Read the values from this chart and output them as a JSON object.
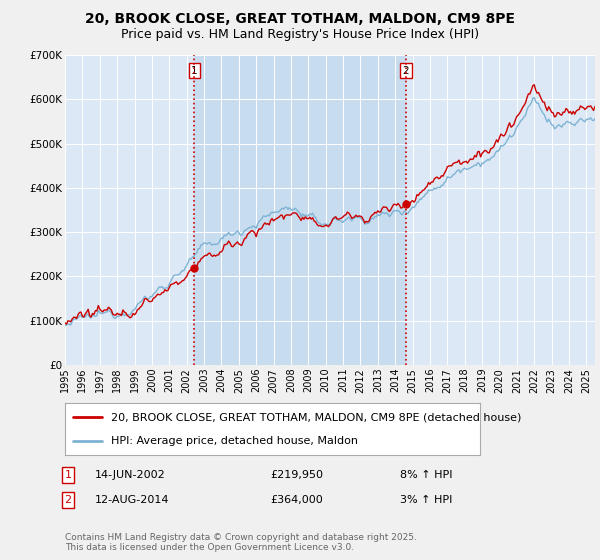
{
  "title": "20, BROOK CLOSE, GREAT TOTHAM, MALDON, CM9 8PE",
  "subtitle": "Price paid vs. HM Land Registry's House Price Index (HPI)",
  "legend_line1": "20, BROOK CLOSE, GREAT TOTHAM, MALDON, CM9 8PE (detached house)",
  "legend_line2": "HPI: Average price, detached house, Maldon",
  "annotation1_label": "1",
  "annotation1_date": "14-JUN-2002",
  "annotation1_price": "£219,950",
  "annotation1_hpi": "8% ↑ HPI",
  "annotation2_label": "2",
  "annotation2_date": "12-AUG-2014",
  "annotation2_price": "£364,000",
  "annotation2_hpi": "3% ↑ HPI",
  "footer": "Contains HM Land Registry data © Crown copyright and database right 2025.\nThis data is licensed under the Open Government Licence v3.0.",
  "line_color_red": "#cc0000",
  "line_color_blue": "#7fb3d3",
  "background_color": "#f0f0f0",
  "plot_bg_color": "#dce8f5",
  "highlight_bg_color": "#c8dcf0",
  "vline_color": "#cc0000",
  "ylim": [
    0,
    700000
  ],
  "yticks": [
    0,
    100000,
    200000,
    300000,
    400000,
    500000,
    600000,
    700000
  ],
  "ytick_labels": [
    "£0",
    "£100K",
    "£200K",
    "£300K",
    "£400K",
    "£500K",
    "£600K",
    "£700K"
  ],
  "xstart_year": 1995,
  "xend_year": 2025,
  "sale1_year": 2002.45,
  "sale2_year": 2014.62,
  "sale1_price": 219950,
  "sale2_price": 364000,
  "title_fontsize": 10,
  "subtitle_fontsize": 9,
  "tick_fontsize": 7.5,
  "legend_fontsize": 8,
  "annotation_fontsize": 8,
  "footer_fontsize": 6.5
}
